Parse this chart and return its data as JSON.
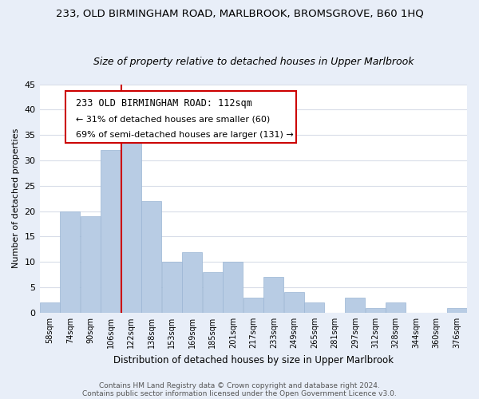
{
  "title": "233, OLD BIRMINGHAM ROAD, MARLBROOK, BROMSGROVE, B60 1HQ",
  "subtitle": "Size of property relative to detached houses in Upper Marlbrook",
  "xlabel": "Distribution of detached houses by size in Upper Marlbrook",
  "ylabel": "Number of detached properties",
  "bar_labels": [
    "58sqm",
    "74sqm",
    "90sqm",
    "106sqm",
    "122sqm",
    "138sqm",
    "153sqm",
    "169sqm",
    "185sqm",
    "201sqm",
    "217sqm",
    "233sqm",
    "249sqm",
    "265sqm",
    "281sqm",
    "297sqm",
    "312sqm",
    "328sqm",
    "344sqm",
    "360sqm",
    "376sqm"
  ],
  "bar_values": [
    2,
    20,
    19,
    32,
    34,
    22,
    10,
    12,
    8,
    10,
    3,
    7,
    4,
    2,
    0,
    3,
    1,
    2,
    0,
    0,
    1
  ],
  "bar_color": "#b8cce4",
  "bar_edge_color": "#9ab5d4",
  "ylim": [
    0,
    45
  ],
  "yticks": [
    0,
    5,
    10,
    15,
    20,
    25,
    30,
    35,
    40,
    45
  ],
  "vline_x": 3.5,
  "vline_color": "#cc0000",
  "annotation_line1": "233 OLD BIRMINGHAM ROAD: 112sqm",
  "annotation_line2": "← 31% of detached houses are smaller (60)",
  "annotation_line3": "69% of semi-detached houses are larger (131) →",
  "box_facecolor": "#ffffff",
  "box_edgecolor": "#cc0000",
  "footer1": "Contains HM Land Registry data © Crown copyright and database right 2024.",
  "footer2": "Contains public sector information licensed under the Open Government Licence v3.0.",
  "fig_facecolor": "#e8eef8",
  "plot_facecolor": "#ffffff",
  "grid_color": "#d8dde8",
  "title_fontsize": 9.5,
  "subtitle_fontsize": 9,
  "bar_width": 0.98
}
